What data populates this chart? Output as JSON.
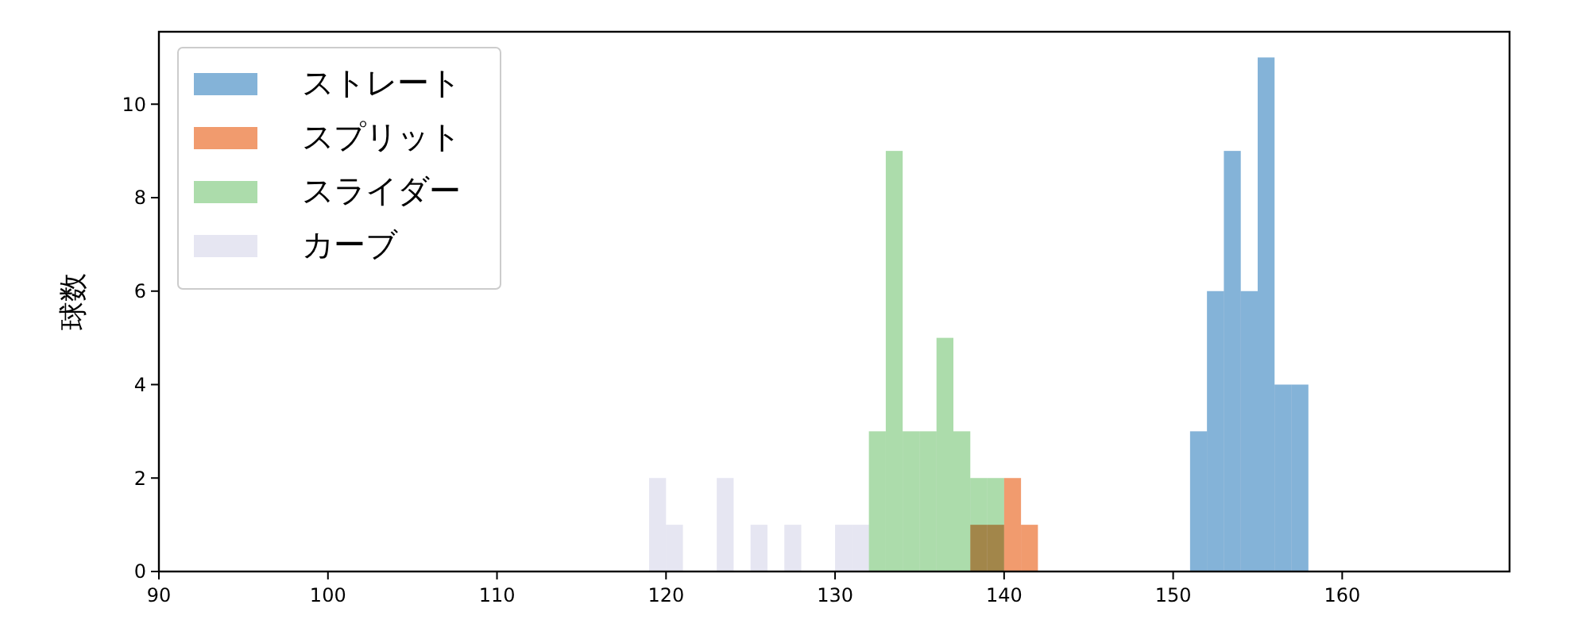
{
  "chart_data": {
    "type": "histogram",
    "ylabel": "球数",
    "xlim": [
      90,
      169.9
    ],
    "ylim": [
      0,
      11.55
    ],
    "xticks": [
      90,
      100,
      110,
      120,
      130,
      140,
      150,
      160
    ],
    "yticks": [
      0,
      2,
      4,
      6,
      8,
      10
    ],
    "legend": "top left",
    "grid": false,
    "bins": [
      119,
      120,
      121,
      122,
      123,
      124,
      125,
      126,
      127,
      128,
      129,
      130,
      131,
      132,
      133,
      134,
      135,
      136,
      137,
      138,
      139,
      140,
      141,
      142,
      143,
      144,
      145,
      146,
      147,
      148,
      149,
      150,
      151,
      152,
      153,
      154,
      155,
      156,
      157,
      158
    ],
    "series": [
      {
        "name": "ストレート",
        "color": "#84b3d8",
        "values": [
          0,
          0,
          0,
          0,
          0,
          0,
          0,
          0,
          0,
          0,
          0,
          0,
          0,
          0,
          0,
          0,
          0,
          0,
          0,
          0,
          0,
          0,
          0,
          0,
          0,
          0,
          0,
          0,
          0,
          0,
          0,
          0,
          3,
          6,
          9,
          6,
          11,
          4,
          4
        ]
      },
      {
        "name": "スプリット",
        "color": "#f19b6e",
        "values": [
          0,
          0,
          0,
          0,
          0,
          0,
          0,
          0,
          0,
          0,
          0,
          0,
          0,
          0,
          0,
          0,
          0,
          0,
          0,
          1,
          1,
          2,
          1,
          0,
          0,
          0,
          0,
          0,
          0,
          0,
          0,
          0,
          0,
          0,
          0,
          0,
          0,
          0,
          0
        ]
      },
      {
        "name": "スライダー",
        "color": "#acdcab",
        "values": [
          0,
          0,
          0,
          0,
          0,
          0,
          0,
          0,
          0,
          0,
          0,
          0,
          0,
          3,
          9,
          3,
          3,
          5,
          3,
          2,
          2,
          0,
          0,
          0,
          0,
          0,
          0,
          0,
          0,
          0,
          0,
          0,
          0,
          0,
          0,
          0,
          0,
          0,
          0
        ]
      },
      {
        "name": "カーブ",
        "color": "#e6e6f2",
        "values": [
          2,
          1,
          0,
          0,
          2,
          0,
          1,
          0,
          1,
          0,
          0,
          1,
          1,
          0,
          0,
          0,
          0,
          0,
          0,
          0,
          0,
          0,
          0,
          0,
          0,
          0,
          0,
          0,
          0,
          0,
          0,
          0,
          0,
          0,
          0,
          0,
          0,
          0,
          0
        ]
      }
    ]
  }
}
